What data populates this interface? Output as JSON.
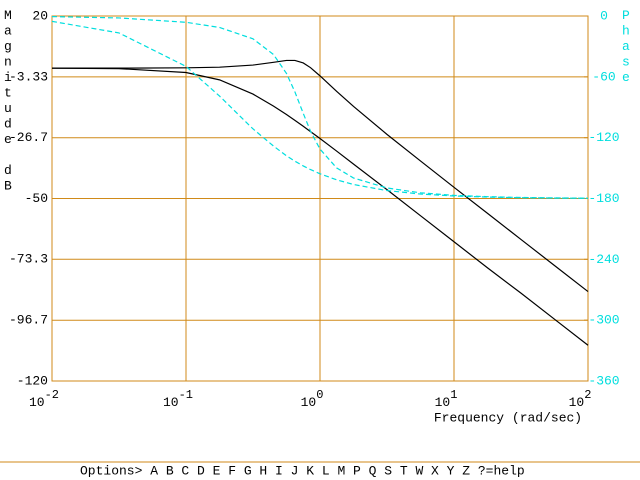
{
  "chart_data": {
    "type": "line",
    "xlabel": "Frequency (rad/sec)",
    "ylabel": "Magnitude dB",
    "y2label": "Phase",
    "xscale": "log",
    "grid": true,
    "grid_color": "#d08a18",
    "xlim": [
      0.01,
      100
    ],
    "xticks": [
      {
        "value": 0.01,
        "label": "10",
        "exponent": "-2"
      },
      {
        "value": 0.1,
        "label": "10",
        "exponent": "-1"
      },
      {
        "value": 1,
        "label": "10",
        "exponent": "0"
      },
      {
        "value": 10,
        "label": "10",
        "exponent": "1"
      },
      {
        "value": 100,
        "label": "10",
        "exponent": "2"
      }
    ],
    "ylim": [
      -120,
      20
    ],
    "yticks": [
      20,
      -3.33,
      -26.7,
      -50,
      -73.3,
      -96.7,
      -120
    ],
    "y2lim": [
      -360,
      0
    ],
    "y2ticks": [
      0,
      -60,
      -120,
      -180,
      -240,
      -300,
      -360
    ],
    "x": [
      0.01,
      0.0316,
      0.1,
      0.178,
      0.316,
      0.45,
      0.562,
      0.65,
      0.75,
      0.85,
      1,
      1.33,
      1.78,
      3.16,
      5.62,
      10,
      17.8,
      31.6,
      56.2,
      100
    ],
    "series": [
      {
        "color": "#000000",
        "linestyle": "solid",
        "axis": "y",
        "values": [
          0,
          0,
          0.12,
          0.37,
          1.18,
          2.24,
          2.96,
          2.96,
          1.98,
          0.18,
          -2.96,
          -8.9,
          -14.7,
          -25.4,
          -35.6,
          -45.7,
          -55.7,
          -65.7,
          -75.7,
          -85.7
        ]
      },
      {
        "color": "#000000",
        "linestyle": "solid",
        "axis": "y",
        "values": [
          -0.02,
          -0.18,
          -1.68,
          -4.5,
          -9.94,
          -14.55,
          -17.8,
          -20.05,
          -22.3,
          -24.35,
          -27.0,
          -31.8,
          -36.8,
          -46.6,
          -56.6,
          -66.6,
          -76.6,
          -86.3,
          -96.3,
          -106.3
        ]
      },
      {
        "color": "#00dede",
        "linestyle": "dashed",
        "axis": "y2",
        "values": [
          -0.6,
          -1.9,
          -6.2,
          -11.3,
          -22.5,
          -38.0,
          -56.6,
          -74.9,
          -96.1,
          -113.7,
          -131.3,
          -149.8,
          -159.8,
          -169.6,
          -174.4,
          -176.9,
          -178.2,
          -179.0,
          -179.4,
          -179.7
        ]
      },
      {
        "color": "#00dede",
        "linestyle": "dashed",
        "axis": "y2",
        "values": [
          -5.3,
          -16.7,
          -49.7,
          -79.0,
          -111.3,
          -128.3,
          -137.9,
          -143.2,
          -147.9,
          -151.5,
          -155.6,
          -161.6,
          -166.2,
          -172.2,
          -175.6,
          -177.5,
          -178.6,
          -179.2,
          -179.6,
          -179.75
        ]
      }
    ]
  },
  "menu": "Options> A B C D E F G H I J K L M P Q S T W X Y Z ?=help"
}
